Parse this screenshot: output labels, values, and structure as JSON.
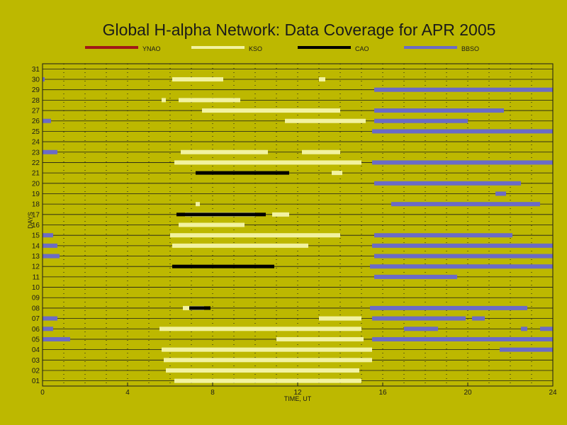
{
  "chart_data": {
    "type": "timeline",
    "title": "Global H-alpha Network: Data Coverage for APR 2005",
    "xlabel": "TIME, UT",
    "ylabel": "DAYS",
    "xlim": [
      0,
      24
    ],
    "ylim": [
      0.5,
      31.5
    ],
    "x_ticks": [
      0,
      4,
      8,
      12,
      16,
      20,
      24
    ],
    "y_ticks": [
      "01",
      "02",
      "03",
      "04",
      "05",
      "06",
      "07",
      "08",
      "09",
      "10",
      "11",
      "12",
      "13",
      "14",
      "15",
      "16",
      "17",
      "18",
      "19",
      "20",
      "21",
      "22",
      "23",
      "24",
      "25",
      "26",
      "27",
      "28",
      "29",
      "30",
      "31"
    ],
    "grid": true,
    "legend_position": "top",
    "series": [
      {
        "name": "YNAO",
        "color": "#a01818",
        "bars": []
      },
      {
        "name": "KSO",
        "color": "#f2f2a0",
        "bars": [
          [
            1,
            6.2,
            15.0
          ],
          [
            2,
            5.8,
            14.9
          ],
          [
            3,
            5.7,
            15.5
          ],
          [
            4,
            5.6,
            15.5
          ],
          [
            5,
            11.0,
            15.1
          ],
          [
            6,
            5.5,
            15.0
          ],
          [
            7,
            13.0,
            15.0
          ],
          [
            8,
            6.6,
            7.6
          ],
          [
            14,
            6.1,
            12.5
          ],
          [
            15,
            6.0,
            14.0
          ],
          [
            16,
            6.4,
            9.5
          ],
          [
            17,
            6.7,
            10.0
          ],
          [
            17,
            10.8,
            11.6
          ],
          [
            18,
            7.2,
            7.4
          ],
          [
            21,
            13.6,
            14.1
          ],
          [
            22,
            6.2,
            15.0
          ],
          [
            23,
            6.5,
            10.6
          ],
          [
            23,
            12.2,
            14.0
          ],
          [
            26,
            11.4,
            15.2
          ],
          [
            27,
            7.5,
            14.0
          ],
          [
            28,
            5.6,
            5.8
          ],
          [
            28,
            6.4,
            9.3
          ],
          [
            30,
            6.1,
            8.5
          ],
          [
            30,
            13.0,
            13.3
          ]
        ]
      },
      {
        "name": "CAO",
        "color": "#000000",
        "bars": [
          [
            8,
            6.9,
            7.9
          ],
          [
            12,
            6.1,
            10.9
          ],
          [
            17,
            6.3,
            10.5
          ],
          [
            21,
            7.2,
            11.6
          ]
        ]
      },
      {
        "name": "BBSO",
        "color": "#6b6bc6",
        "bars": [
          [
            4,
            21.5,
            24.0
          ],
          [
            5,
            0.0,
            1.3
          ],
          [
            5,
            15.5,
            24.0
          ],
          [
            6,
            0.0,
            0.5
          ],
          [
            6,
            17.0,
            18.6
          ],
          [
            6,
            22.5,
            22.8
          ],
          [
            6,
            23.4,
            24.0
          ],
          [
            7,
            0.0,
            0.7
          ],
          [
            7,
            15.5,
            19.9
          ],
          [
            7,
            20.2,
            20.8
          ],
          [
            8,
            15.4,
            22.8
          ],
          [
            11,
            15.6,
            19.5
          ],
          [
            12,
            15.4,
            24.0
          ],
          [
            13,
            0.0,
            0.8
          ],
          [
            13,
            15.6,
            24.0
          ],
          [
            14,
            0.0,
            0.7
          ],
          [
            14,
            15.5,
            24.0
          ],
          [
            15,
            0.0,
            0.5
          ],
          [
            15,
            15.6,
            22.1
          ],
          [
            18,
            16.4,
            23.4
          ],
          [
            19,
            21.3,
            21.8
          ],
          [
            20,
            15.6,
            22.5
          ],
          [
            22,
            15.5,
            24.0
          ],
          [
            23,
            0.0,
            0.7
          ],
          [
            25,
            15.5,
            24.0
          ],
          [
            26,
            0.0,
            0.4
          ],
          [
            26,
            15.6,
            20.0
          ],
          [
            27,
            15.6,
            21.7
          ],
          [
            29,
            15.6,
            24.0
          ],
          [
            30,
            0.0,
            0.1
          ]
        ]
      }
    ]
  }
}
